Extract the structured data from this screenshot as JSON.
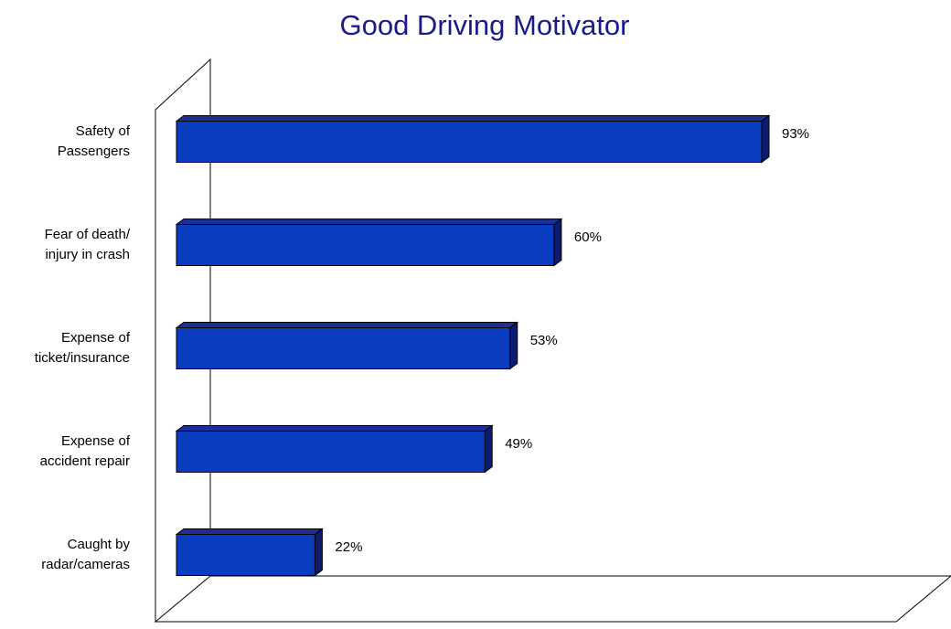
{
  "chart_data": {
    "type": "bar3d_horizontal",
    "title": "Good Driving Motivator",
    "categories": [
      "Safety of\nPassengers",
      "Fear of death/\ninjury in crash",
      "Expense of\nticket/insurance",
      "Expense of\naccident repair",
      "Caught by\nradar/cameras"
    ],
    "values": [
      93,
      60,
      53,
      49,
      22
    ],
    "value_labels": [
      "93%",
      "60%",
      "53%",
      "49%",
      "22%"
    ],
    "color": "#0a3cc0"
  }
}
